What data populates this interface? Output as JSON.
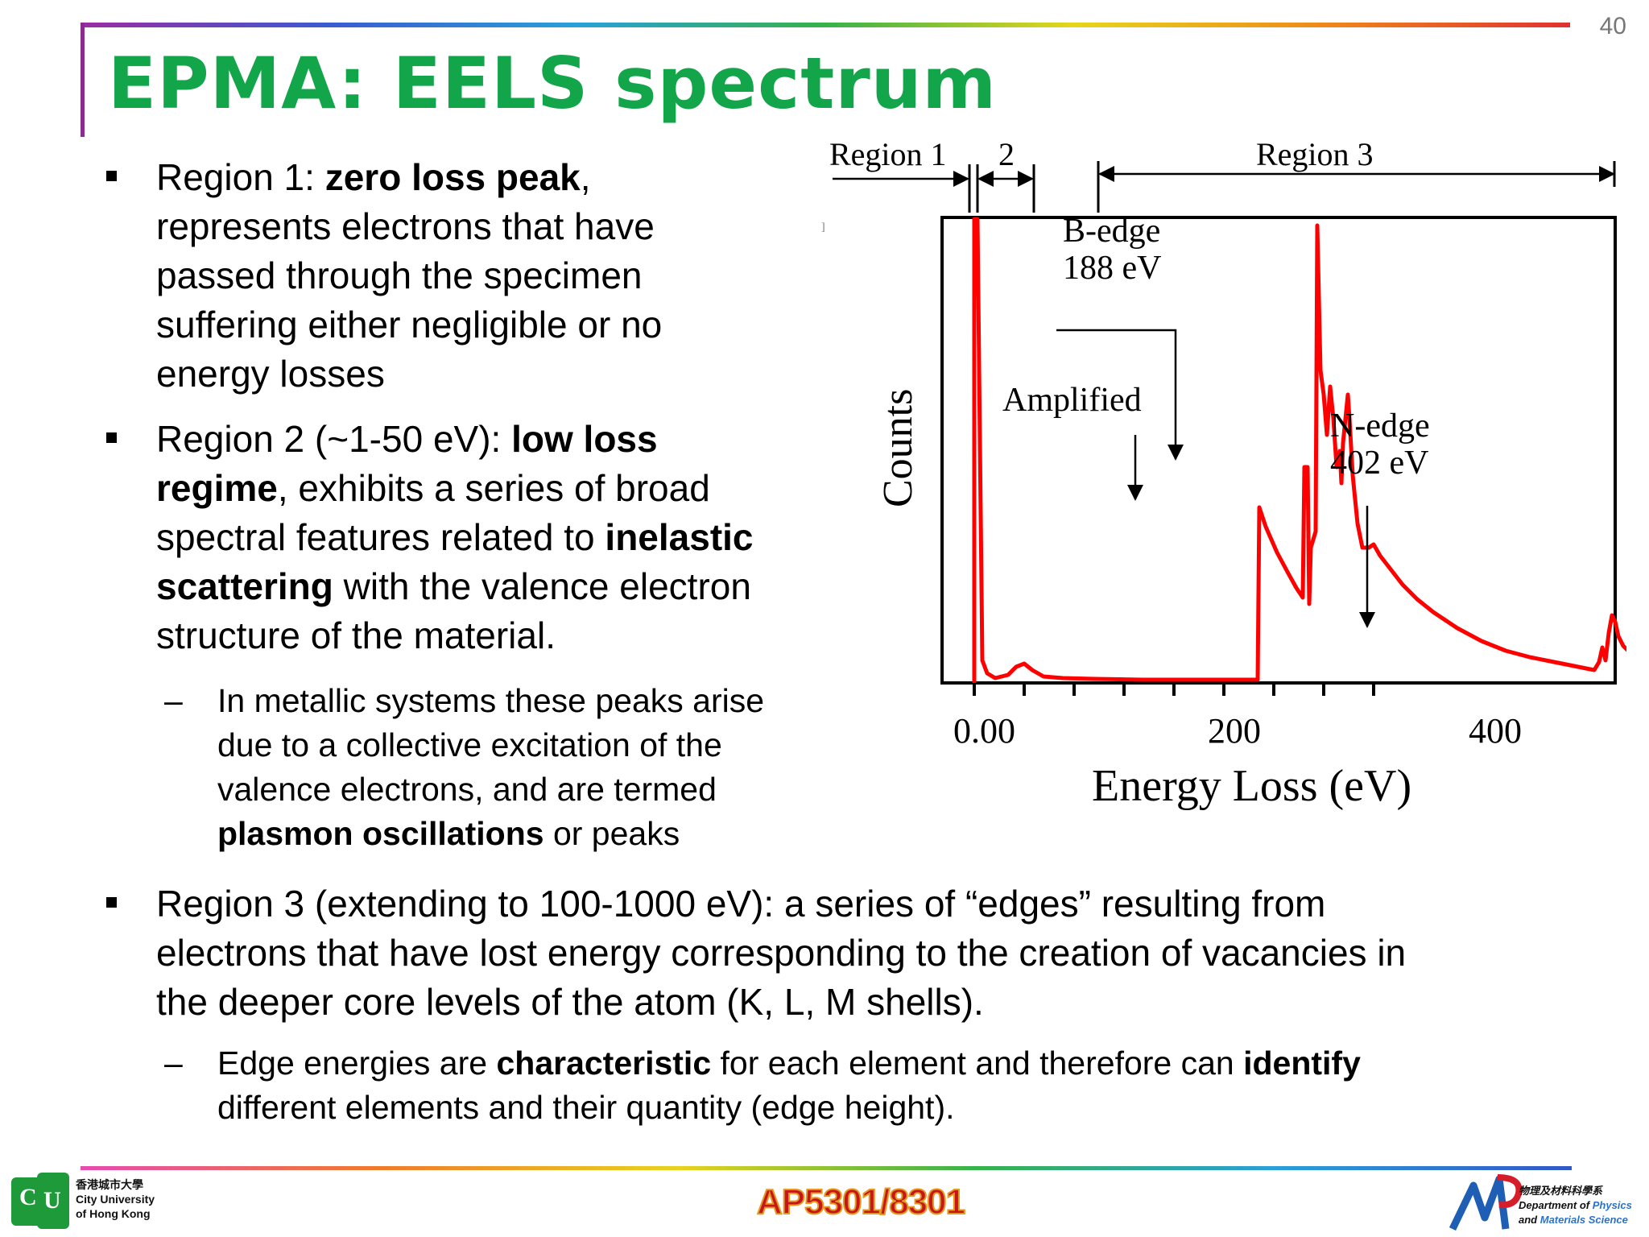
{
  "slide": {
    "page_number": "40",
    "title": "EPMA: EELS spectrum",
    "bullets": [
      {
        "lines": [
          [
            {
              "t": "Region 1:  "
            },
            {
              "t": "zero loss peak",
              "b": true
            },
            {
              "t": ","
            }
          ],
          [
            {
              "t": "represents electrons that have"
            }
          ],
          [
            {
              "t": "passed through the specimen"
            }
          ],
          [
            {
              "t": "suffering either negligible or no"
            }
          ],
          [
            {
              "t": "energy losses"
            }
          ]
        ]
      },
      {
        "lines": [
          [
            {
              "t": "Region 2 (~1-50 eV): "
            },
            {
              "t": "low loss",
              "b": true
            }
          ],
          [
            {
              "t": "regime",
              "b": true
            },
            {
              "t": ", exhibits a series of broad"
            }
          ],
          [
            {
              "t": "spectral features related to "
            },
            {
              "t": "inelastic",
              "b": true
            }
          ],
          [
            {
              "t": "scattering",
              "b": true
            },
            {
              "t": " with the valence electron"
            }
          ],
          [
            {
              "t": "structure of the material."
            }
          ]
        ]
      },
      {
        "lines": [
          [
            {
              "t": "Region 3 (extending to 100-1000 eV): a series of “edges” resulting from"
            }
          ],
          [
            {
              "t": "electrons that have lost energy corresponding to the creation of vacancies in"
            }
          ],
          [
            {
              "t": "the deeper core levels of the atom (K, L, M shells)."
            }
          ]
        ]
      }
    ],
    "subbullets": [
      {
        "dash": "–",
        "lines": [
          [
            {
              "t": "In metallic systems these peaks arise"
            }
          ],
          [
            {
              "t": "due to a collective excitation of the"
            }
          ],
          [
            {
              "t": "valence electrons, and are termed"
            }
          ],
          [
            {
              "t": "plasmon oscillations",
              "b": true
            },
            {
              "t": " or peaks"
            }
          ]
        ]
      },
      {
        "dash": "–",
        "lines": [
          [
            {
              "t": "Edge energies are "
            },
            {
              "t": "characteristic",
              "b": true
            },
            {
              "t": " for each element and therefore can "
            },
            {
              "t": "identify",
              "b": true
            }
          ],
          [
            {
              "t": "different elements and their quantity (edge height)."
            }
          ]
        ]
      }
    ]
  },
  "figure": {
    "region1_label": "Region 1",
    "region2_label": "2",
    "region3_label": "Region 3",
    "bedge_label1": "B-edge",
    "bedge_label2": "188 eV",
    "amplified_label": "Amplified",
    "nedge_label1": "N-edge",
    "nedge_label2": "402 eV",
    "ylabel": "Counts",
    "xlabel": "Energy Loss (eV)",
    "tick_0": "0.00",
    "tick_200": "200",
    "tick_400": "400",
    "line_color": "#ff0000"
  },
  "footer": {
    "course_code": "AP5301/8301",
    "cityu_lines": [
      "香港城市大學",
      "City University",
      "of Hong Kong"
    ],
    "dept_lines": [
      "物理及材料科學系",
      "Department of ",
      "Physics",
      "and ",
      "Materials Science"
    ],
    "colors": {
      "title": "#12a54a",
      "course": "#c6161c"
    }
  }
}
